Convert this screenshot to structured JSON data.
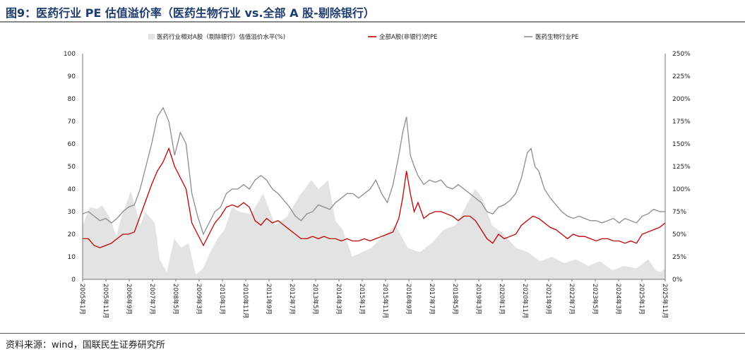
{
  "title": "图9：医药行业 PE 估值溢价率（医药生物行业 vs.全部 A 股-剔除银行）",
  "source": "资料来源：wind，国联民生证券研究所",
  "colors": {
    "premium": "#e3e3e3",
    "all_a": "#c00000",
    "pharma": "#8c8c8c",
    "title": "#1f3c6e"
  },
  "chart_data": {
    "type": "line",
    "x_labels": [
      "2005年1月",
      "2005年11月",
      "2006年9月",
      "2007年7月",
      "2008年5月",
      "2009年3月",
      "2010年1月",
      "2010年11月",
      "2011年9月",
      "2012年7月",
      "2013年5月",
      "2014年3月",
      "2015年1月",
      "2015年11月",
      "2016年9月",
      "2017年7月",
      "2018年5月",
      "2019年3月",
      "2020年1月",
      "2020年11月",
      "2021年9月",
      "2022年7月",
      "2023年5月",
      "2024年3月",
      "2025年1月",
      "2025年11月"
    ],
    "y_left": {
      "ticks": [
        "0",
        "10",
        "20",
        "30",
        "40",
        "50",
        "60",
        "70",
        "80",
        "90",
        "100"
      ],
      "range": [
        0,
        100
      ]
    },
    "y_right": {
      "ticks": [
        "0%",
        "25%",
        "50%",
        "75%",
        "100%",
        "125%",
        "150%",
        "175%",
        "200%",
        "225%",
        "250%"
      ],
      "range": [
        0,
        250
      ]
    },
    "legend_position": "top",
    "series": [
      {
        "name": "医药行业相对A股（剔除银行）估值溢价水平(%)",
        "axis": "right",
        "kind": "area",
        "color": "#e3e3e3",
        "points": [
          [
            0,
            60
          ],
          [
            3,
            80
          ],
          [
            6,
            78
          ],
          [
            8,
            82
          ],
          [
            11,
            70
          ],
          [
            14,
            48
          ],
          [
            16,
            68
          ],
          [
            20,
            98
          ],
          [
            24,
            60
          ],
          [
            26,
            75
          ],
          [
            30,
            62
          ],
          [
            32,
            22
          ],
          [
            35,
            8
          ],
          [
            38,
            45
          ],
          [
            41,
            35
          ],
          [
            44,
            40
          ],
          [
            47,
            5
          ],
          [
            50,
            12
          ],
          [
            53,
            30
          ],
          [
            56,
            45
          ],
          [
            59,
            55
          ],
          [
            62,
            80
          ],
          [
            65,
            75
          ],
          [
            70,
            72
          ],
          [
            75,
            95
          ],
          [
            80,
            60
          ],
          [
            85,
            70
          ],
          [
            90,
            92
          ],
          [
            95,
            110
          ],
          [
            98,
            100
          ],
          [
            102,
            110
          ],
          [
            105,
            65
          ],
          [
            108,
            55
          ],
          [
            112,
            25
          ],
          [
            116,
            30
          ],
          [
            120,
            35
          ],
          [
            125,
            48
          ],
          [
            130,
            60
          ],
          [
            135,
            35
          ],
          [
            140,
            30
          ],
          [
            145,
            40
          ],
          [
            150,
            55
          ],
          [
            155,
            60
          ],
          [
            160,
            85
          ],
          [
            163,
            100
          ],
          [
            166,
            90
          ],
          [
            170,
            60
          ],
          [
            175,
            50
          ],
          [
            180,
            35
          ],
          [
            185,
            30
          ],
          [
            190,
            20
          ],
          [
            195,
            25
          ],
          [
            200,
            18
          ],
          [
            205,
            22
          ],
          [
            210,
            15
          ],
          [
            215,
            20
          ],
          [
            220,
            10
          ],
          [
            225,
            15
          ],
          [
            230,
            12
          ],
          [
            235,
            22
          ],
          [
            238,
            10
          ],
          [
            240,
            8
          ],
          [
            242,
            12
          ]
        ]
      },
      {
        "name": "全部A股(非银行)的PE",
        "axis": "left",
        "kind": "line",
        "color": "#c00000",
        "points": [
          [
            0,
            18
          ],
          [
            3,
            18
          ],
          [
            6,
            15
          ],
          [
            9,
            14
          ],
          [
            12,
            15
          ],
          [
            15,
            16
          ],
          [
            18,
            18
          ],
          [
            21,
            20
          ],
          [
            24,
            20
          ],
          [
            27,
            21
          ],
          [
            30,
            28
          ],
          [
            33,
            35
          ],
          [
            36,
            42
          ],
          [
            39,
            48
          ],
          [
            42,
            52
          ],
          [
            45,
            58
          ],
          [
            48,
            50
          ],
          [
            51,
            45
          ],
          [
            54,
            40
          ],
          [
            57,
            25
          ],
          [
            60,
            20
          ],
          [
            63,
            15
          ],
          [
            66,
            20
          ],
          [
            69,
            25
          ],
          [
            72,
            28
          ],
          [
            75,
            32
          ],
          [
            78,
            33
          ],
          [
            81,
            32
          ],
          [
            84,
            34
          ],
          [
            87,
            32
          ],
          [
            90,
            26
          ],
          [
            93,
            24
          ],
          [
            96,
            27
          ],
          [
            99,
            25
          ],
          [
            102,
            26
          ],
          [
            105,
            24
          ],
          [
            108,
            22
          ],
          [
            111,
            20
          ],
          [
            114,
            18
          ],
          [
            117,
            18
          ],
          [
            120,
            19
          ],
          [
            123,
            18
          ],
          [
            126,
            19
          ],
          [
            129,
            18
          ],
          [
            132,
            18
          ],
          [
            135,
            17
          ],
          [
            138,
            18
          ],
          [
            141,
            17
          ],
          [
            144,
            17
          ],
          [
            147,
            18
          ],
          [
            150,
            17
          ],
          [
            153,
            18
          ],
          [
            156,
            19
          ],
          [
            159,
            20
          ],
          [
            162,
            21
          ],
          [
            165,
            27
          ],
          [
            167,
            36
          ],
          [
            169,
            48
          ],
          [
            171,
            38
          ],
          [
            173,
            30
          ],
          [
            175,
            34
          ],
          [
            178,
            27
          ],
          [
            181,
            29
          ],
          [
            184,
            30
          ],
          [
            187,
            30
          ],
          [
            190,
            29
          ],
          [
            193,
            28
          ],
          [
            196,
            26
          ],
          [
            199,
            28
          ],
          [
            202,
            28
          ],
          [
            205,
            26
          ],
          [
            208,
            22
          ],
          [
            211,
            18
          ],
          [
            214,
            16
          ],
          [
            217,
            20
          ],
          [
            220,
            18
          ],
          [
            223,
            19
          ],
          [
            226,
            20
          ],
          [
            229,
            24
          ],
          [
            232,
            26
          ],
          [
            235,
            28
          ],
          [
            238,
            27
          ],
          [
            241,
            25
          ],
          [
            244,
            23
          ],
          [
            247,
            22
          ],
          [
            250,
            20
          ],
          [
            253,
            18
          ],
          [
            256,
            20
          ],
          [
            259,
            19
          ],
          [
            262,
            19
          ],
          [
            265,
            18
          ],
          [
            268,
            17
          ],
          [
            271,
            18
          ],
          [
            274,
            18
          ],
          [
            277,
            17
          ],
          [
            280,
            17
          ],
          [
            283,
            16
          ],
          [
            286,
            17
          ],
          [
            289,
            16
          ],
          [
            292,
            20
          ],
          [
            295,
            21
          ],
          [
            298,
            22
          ],
          [
            301,
            23
          ],
          [
            304,
            25
          ]
        ]
      },
      {
        "name": "医药生物行业PE",
        "axis": "left",
        "kind": "line",
        "color": "#8c8c8c",
        "points": [
          [
            0,
            29
          ],
          [
            3,
            30
          ],
          [
            6,
            28
          ],
          [
            9,
            26
          ],
          [
            12,
            27
          ],
          [
            15,
            25
          ],
          [
            18,
            27
          ],
          [
            21,
            30
          ],
          [
            24,
            32
          ],
          [
            27,
            33
          ],
          [
            30,
            40
          ],
          [
            33,
            50
          ],
          [
            36,
            60
          ],
          [
            39,
            72
          ],
          [
            42,
            76
          ],
          [
            45,
            70
          ],
          [
            48,
            55
          ],
          [
            51,
            65
          ],
          [
            54,
            60
          ],
          [
            57,
            38
          ],
          [
            60,
            28
          ],
          [
            63,
            20
          ],
          [
            66,
            25
          ],
          [
            69,
            30
          ],
          [
            72,
            32
          ],
          [
            75,
            38
          ],
          [
            78,
            40
          ],
          [
            81,
            40
          ],
          [
            84,
            42
          ],
          [
            87,
            40
          ],
          [
            90,
            44
          ],
          [
            93,
            46
          ],
          [
            96,
            44
          ],
          [
            99,
            40
          ],
          [
            102,
            38
          ],
          [
            105,
            35
          ],
          [
            108,
            32
          ],
          [
            111,
            28
          ],
          [
            114,
            26
          ],
          [
            117,
            29
          ],
          [
            120,
            30
          ],
          [
            123,
            33
          ],
          [
            126,
            32
          ],
          [
            129,
            31
          ],
          [
            132,
            34
          ],
          [
            135,
            36
          ],
          [
            138,
            38
          ],
          [
            141,
            38
          ],
          [
            144,
            36
          ],
          [
            147,
            38
          ],
          [
            150,
            40
          ],
          [
            153,
            44
          ],
          [
            156,
            38
          ],
          [
            159,
            34
          ],
          [
            162,
            42
          ],
          [
            165,
            55
          ],
          [
            167,
            65
          ],
          [
            169,
            72
          ],
          [
            171,
            55
          ],
          [
            173,
            50
          ],
          [
            175,
            46
          ],
          [
            178,
            42
          ],
          [
            181,
            44
          ],
          [
            184,
            43
          ],
          [
            187,
            44
          ],
          [
            190,
            41
          ],
          [
            193,
            40
          ],
          [
            196,
            42
          ],
          [
            199,
            40
          ],
          [
            202,
            38
          ],
          [
            205,
            36
          ],
          [
            208,
            34
          ],
          [
            211,
            30
          ],
          [
            214,
            29
          ],
          [
            217,
            32
          ],
          [
            220,
            33
          ],
          [
            223,
            35
          ],
          [
            226,
            38
          ],
          [
            229,
            45
          ],
          [
            232,
            56
          ],
          [
            234,
            58
          ],
          [
            236,
            50
          ],
          [
            238,
            48
          ],
          [
            241,
            40
          ],
          [
            244,
            36
          ],
          [
            247,
            33
          ],
          [
            250,
            30
          ],
          [
            253,
            28
          ],
          [
            256,
            27
          ],
          [
            259,
            28
          ],
          [
            262,
            27
          ],
          [
            265,
            26
          ],
          [
            268,
            26
          ],
          [
            271,
            25
          ],
          [
            274,
            26
          ],
          [
            277,
            27
          ],
          [
            280,
            25
          ],
          [
            283,
            27
          ],
          [
            286,
            26
          ],
          [
            289,
            25
          ],
          [
            292,
            28
          ],
          [
            295,
            29
          ],
          [
            298,
            31
          ],
          [
            301,
            30
          ],
          [
            304,
            30
          ]
        ]
      }
    ]
  }
}
